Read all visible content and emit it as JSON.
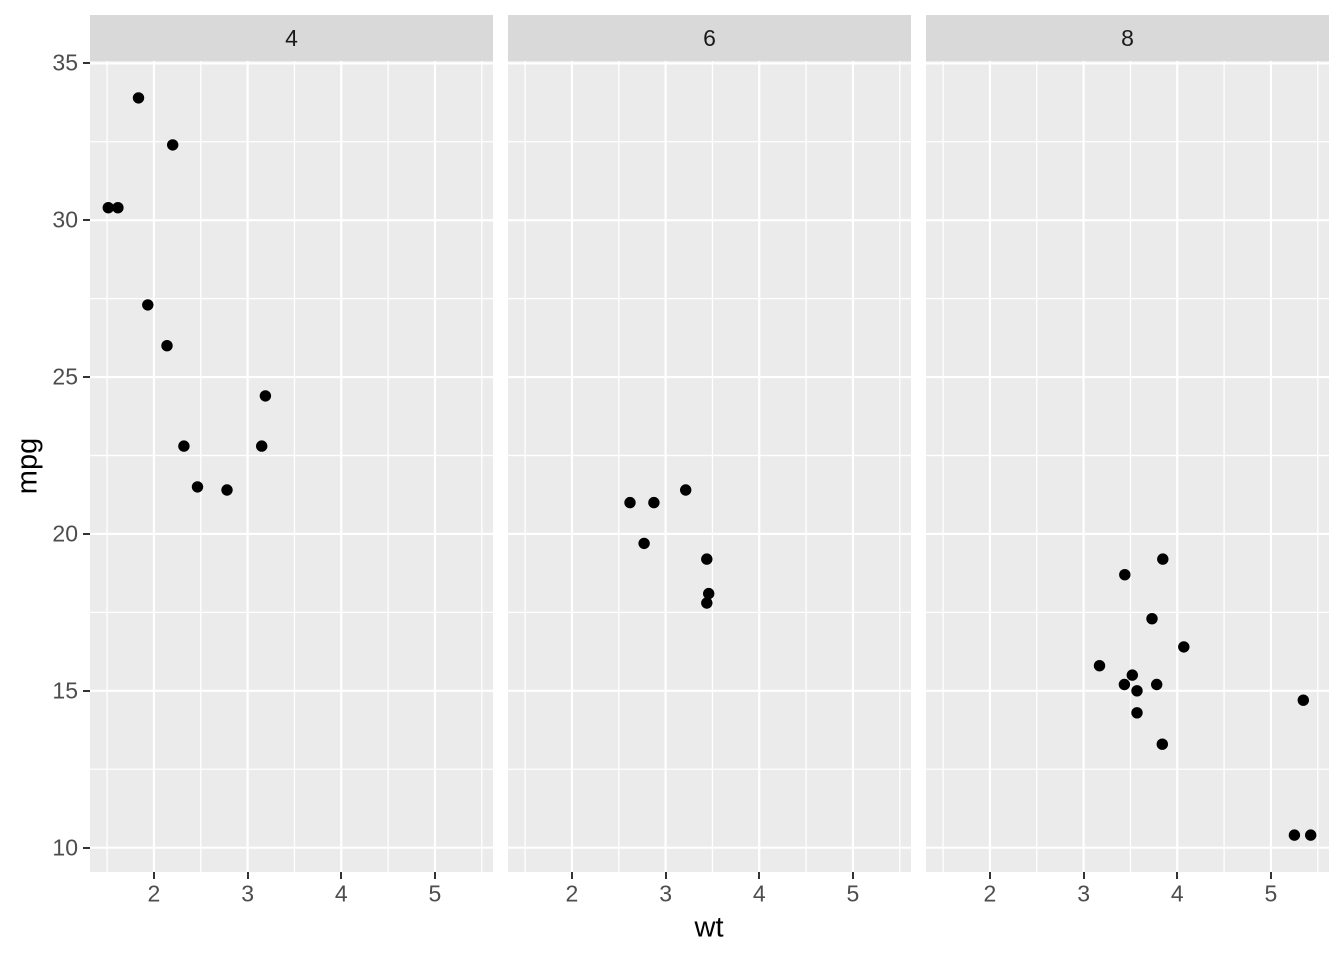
{
  "chart_data": {
    "type": "scatter",
    "title": "",
    "xlabel": "wt",
    "ylabel": "mpg",
    "facet_variable": "cyl",
    "legend": "none",
    "grid": "on",
    "x_ticks": [
      2,
      3,
      4,
      5
    ],
    "y_ticks": [
      10,
      15,
      20,
      25,
      30,
      35
    ],
    "x_minor_gridlines": [
      1.5,
      2.5,
      3.5,
      4.5,
      5.5
    ],
    "y_minor_gridlines": [
      12.5,
      17.5,
      22.5,
      27.5,
      32.5
    ],
    "xlim": [
      1.3175,
      5.6196
    ],
    "ylim": [
      9.225,
      35.075
    ],
    "facets": [
      {
        "label": "4",
        "points": [
          [
            2.32,
            22.8
          ],
          [
            3.19,
            24.4
          ],
          [
            3.15,
            22.8
          ],
          [
            2.2,
            32.4
          ],
          [
            1.615,
            30.4
          ],
          [
            1.835,
            33.9
          ],
          [
            2.465,
            21.5
          ],
          [
            1.935,
            27.3
          ],
          [
            2.14,
            26.0
          ],
          [
            1.513,
            30.4
          ],
          [
            2.78,
            21.4
          ]
        ]
      },
      {
        "label": "6",
        "points": [
          [
            2.62,
            21.0
          ],
          [
            2.875,
            21.0
          ],
          [
            3.215,
            21.4
          ],
          [
            3.46,
            18.1
          ],
          [
            3.44,
            19.2
          ],
          [
            3.44,
            17.8
          ],
          [
            2.77,
            19.7
          ]
        ]
      },
      {
        "label": "8",
        "points": [
          [
            3.44,
            18.7
          ],
          [
            3.57,
            14.3
          ],
          [
            4.07,
            16.4
          ],
          [
            3.73,
            17.3
          ],
          [
            3.78,
            15.2
          ],
          [
            5.25,
            10.4
          ],
          [
            5.424,
            10.4
          ],
          [
            5.345,
            14.7
          ],
          [
            3.52,
            15.5
          ],
          [
            3.435,
            15.2
          ],
          [
            3.84,
            13.3
          ],
          [
            3.845,
            19.2
          ],
          [
            3.17,
            15.8
          ],
          [
            3.57,
            15.0
          ]
        ]
      }
    ],
    "style": {
      "background": "#FFFFFF",
      "panel_bg": "#EBEBEB",
      "strip_bg": "#D9D9D9",
      "grid_color": "#FFFFFF",
      "point_color": "#000000",
      "axis_text_color": "#4D4D4D",
      "strip_text_color": "#1A1A1A",
      "axis_title_color": "#000000",
      "tick_mark_color": "#333333"
    }
  }
}
